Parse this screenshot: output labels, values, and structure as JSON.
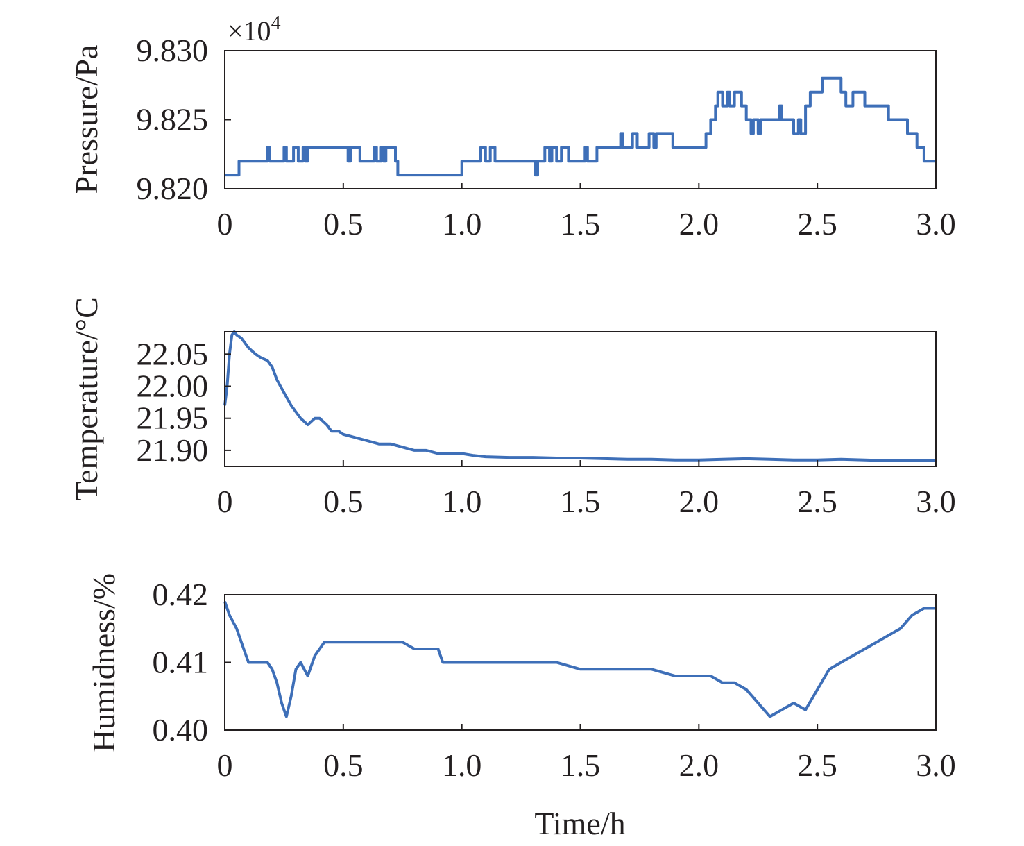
{
  "xlabel": "Time/h",
  "colors": {
    "series": "#3e6fb8",
    "axis": "#231f20"
  },
  "chart_data": [
    {
      "type": "line",
      "ylabel": "Pressure/Pa",
      "multiplier_base": "×10",
      "multiplier_exp": "4",
      "xlim": [
        0,
        3.0
      ],
      "ylim": [
        9.82,
        9.83
      ],
      "xticks": [
        "0",
        "0.5",
        "1.0",
        "1.5",
        "2.0",
        "2.5",
        "3.0"
      ],
      "yticks": [
        "9.820",
        "9.825",
        "9.830"
      ],
      "step": true,
      "series": [
        {
          "x": [
            0,
            0.06,
            0.13,
            0.18,
            0.19,
            0.25,
            0.26,
            0.29,
            0.31,
            0.33,
            0.34,
            0.35,
            0.52,
            0.53,
            0.56,
            0.57,
            0.63,
            0.64,
            0.66,
            0.67,
            0.68,
            0.72,
            0.73,
            0.8,
            0.92,
            1.0,
            1.08,
            1.1,
            1.12,
            1.14,
            1.3,
            1.31,
            1.32,
            1.33,
            1.35,
            1.37,
            1.38,
            1.4,
            1.42,
            1.45,
            1.52,
            1.53,
            1.55,
            1.57,
            1.63,
            1.67,
            1.68,
            1.72,
            1.74,
            1.79,
            1.81,
            1.82,
            1.86,
            1.89,
            1.9,
            2.03,
            2.05,
            2.07,
            2.08,
            2.1,
            2.12,
            2.13,
            2.15,
            2.18,
            2.2,
            2.22,
            2.23,
            2.25,
            2.26,
            2.3,
            2.34,
            2.35,
            2.36,
            2.4,
            2.42,
            2.43,
            2.45,
            2.47,
            2.5,
            2.52,
            2.57,
            2.6,
            2.62,
            2.65,
            2.7,
            2.75,
            2.8,
            2.85,
            2.88,
            2.92,
            2.95,
            3.0
          ],
          "y": [
            9.821,
            9.822,
            9.822,
            9.823,
            9.822,
            9.823,
            9.822,
            9.823,
            9.822,
            9.823,
            9.822,
            9.823,
            9.822,
            9.823,
            9.823,
            9.822,
            9.823,
            9.822,
            9.823,
            9.822,
            9.823,
            9.822,
            9.821,
            9.821,
            9.821,
            9.822,
            9.823,
            9.822,
            9.823,
            9.822,
            9.822,
            9.821,
            9.822,
            9.822,
            9.823,
            9.822,
            9.823,
            9.822,
            9.823,
            9.822,
            9.823,
            9.822,
            9.822,
            9.823,
            9.823,
            9.824,
            9.823,
            9.824,
            9.823,
            9.824,
            9.823,
            9.824,
            9.824,
            9.823,
            9.823,
            9.824,
            9.825,
            9.826,
            9.827,
            9.826,
            9.827,
            9.826,
            9.827,
            9.826,
            9.825,
            9.824,
            9.825,
            9.824,
            9.825,
            9.825,
            9.826,
            9.825,
            9.825,
            9.824,
            9.825,
            9.824,
            9.826,
            9.827,
            9.827,
            9.828,
            9.828,
            9.827,
            9.826,
            9.827,
            9.826,
            9.826,
            9.825,
            9.825,
            9.824,
            9.823,
            9.822,
            9.822
          ]
        }
      ]
    },
    {
      "type": "line",
      "ylabel": "Temperature/°C",
      "xlim": [
        0,
        3.0
      ],
      "ylim": [
        21.875,
        22.085
      ],
      "xticks": [
        "0",
        "0.5",
        "1.0",
        "1.5",
        "2.0",
        "2.5",
        "3.0"
      ],
      "yticks": [
        "21.90",
        "21.95",
        "22.00",
        "22.05"
      ],
      "yticks_values": [
        21.9,
        21.95,
        22.0,
        22.05
      ],
      "series": [
        {
          "x": [
            0,
            0.01,
            0.02,
            0.03,
            0.04,
            0.05,
            0.07,
            0.1,
            0.13,
            0.15,
            0.18,
            0.2,
            0.22,
            0.25,
            0.28,
            0.3,
            0.32,
            0.35,
            0.38,
            0.4,
            0.43,
            0.45,
            0.48,
            0.5,
            0.55,
            0.6,
            0.65,
            0.7,
            0.75,
            0.8,
            0.85,
            0.9,
            0.95,
            1.0,
            1.05,
            1.1,
            1.2,
            1.3,
            1.4,
            1.5,
            1.6,
            1.7,
            1.8,
            1.9,
            2.0,
            2.1,
            2.2,
            2.3,
            2.4,
            2.5,
            2.6,
            2.7,
            2.8,
            2.9,
            3.0
          ],
          "y": [
            21.97,
            22.0,
            22.05,
            22.08,
            22.085,
            22.08,
            22.075,
            22.06,
            22.05,
            22.045,
            22.04,
            22.03,
            22.01,
            21.99,
            21.97,
            21.96,
            21.95,
            21.94,
            21.95,
            21.95,
            21.94,
            21.93,
            21.93,
            21.925,
            21.92,
            21.915,
            21.91,
            21.91,
            21.905,
            21.9,
            21.9,
            21.895,
            21.895,
            21.895,
            21.892,
            21.89,
            21.889,
            21.889,
            21.888,
            21.888,
            21.887,
            21.886,
            21.886,
            21.885,
            21.885,
            21.886,
            21.887,
            21.886,
            21.885,
            21.885,
            21.886,
            21.885,
            21.884,
            21.884,
            21.884
          ]
        }
      ]
    },
    {
      "type": "line",
      "ylabel": "Humidness/%",
      "xlim": [
        0,
        3.0
      ],
      "ylim": [
        0.4,
        0.42
      ],
      "xticks": [
        "0",
        "0.5",
        "1.0",
        "1.5",
        "2.0",
        "2.5",
        "3.0"
      ],
      "yticks": [
        "0.40",
        "0.41",
        "0.42"
      ],
      "yticks_values": [
        0.4,
        0.41,
        0.42
      ],
      "series": [
        {
          "x": [
            0,
            0.02,
            0.05,
            0.08,
            0.1,
            0.12,
            0.15,
            0.18,
            0.2,
            0.22,
            0.24,
            0.26,
            0.28,
            0.3,
            0.32,
            0.35,
            0.38,
            0.4,
            0.42,
            0.45,
            0.5,
            0.55,
            0.6,
            0.65,
            0.7,
            0.75,
            0.8,
            0.85,
            0.9,
            0.92,
            0.95,
            1.0,
            1.05,
            1.1,
            1.2,
            1.3,
            1.4,
            1.5,
            1.6,
            1.7,
            1.8,
            1.9,
            2.0,
            2.05,
            2.1,
            2.15,
            2.2,
            2.25,
            2.3,
            2.35,
            2.4,
            2.45,
            2.5,
            2.55,
            2.6,
            2.65,
            2.7,
            2.75,
            2.8,
            2.85,
            2.9,
            2.95,
            3.0
          ],
          "y": [
            0.419,
            0.417,
            0.415,
            0.412,
            0.41,
            0.41,
            0.41,
            0.41,
            0.409,
            0.407,
            0.404,
            0.402,
            0.405,
            0.409,
            0.41,
            0.408,
            0.411,
            0.412,
            0.413,
            0.413,
            0.413,
            0.413,
            0.413,
            0.413,
            0.413,
            0.413,
            0.412,
            0.412,
            0.412,
            0.41,
            0.41,
            0.41,
            0.41,
            0.41,
            0.41,
            0.41,
            0.41,
            0.409,
            0.409,
            0.409,
            0.409,
            0.408,
            0.408,
            0.408,
            0.407,
            0.407,
            0.406,
            0.404,
            0.402,
            0.403,
            0.404,
            0.403,
            0.406,
            0.409,
            0.41,
            0.411,
            0.412,
            0.413,
            0.414,
            0.415,
            0.417,
            0.418,
            0.418
          ]
        }
      ]
    }
  ]
}
